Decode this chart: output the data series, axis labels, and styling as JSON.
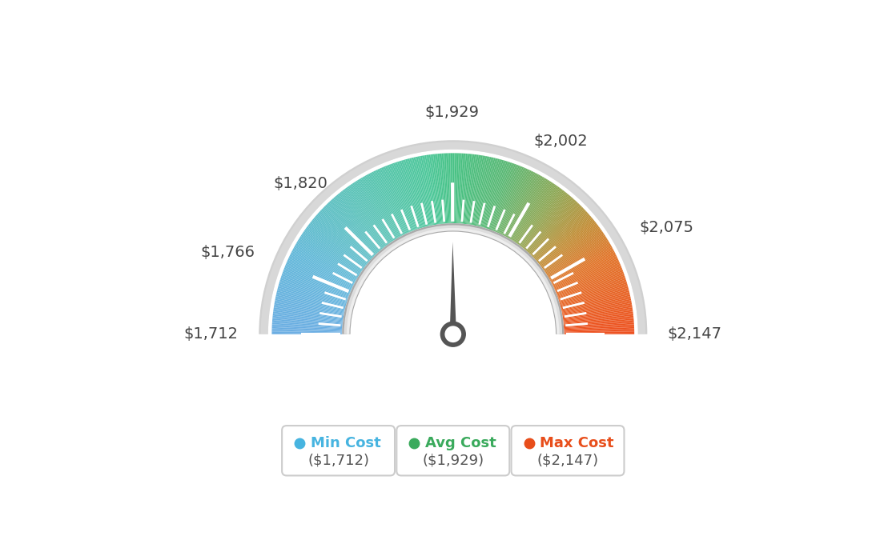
{
  "min_val": 1712,
  "max_val": 2147,
  "avg_val": 1929,
  "needle_value": 1929,
  "tick_labels": [
    "$1,712",
    "$1,766",
    "$1,820",
    "$1,929",
    "$2,002",
    "$2,075",
    "$2,147"
  ],
  "tick_values": [
    1712,
    1766,
    1820,
    1929,
    2002,
    2075,
    2147
  ],
  "color_stops": [
    [
      0.0,
      [
        0.42,
        0.68,
        0.89
      ]
    ],
    [
      0.15,
      [
        0.38,
        0.72,
        0.85
      ]
    ],
    [
      0.3,
      [
        0.35,
        0.76,
        0.72
      ]
    ],
    [
      0.45,
      [
        0.3,
        0.78,
        0.6
      ]
    ],
    [
      0.5,
      [
        0.28,
        0.76,
        0.52
      ]
    ],
    [
      0.6,
      [
        0.35,
        0.72,
        0.45
      ]
    ],
    [
      0.7,
      [
        0.55,
        0.65,
        0.32
      ]
    ],
    [
      0.78,
      [
        0.75,
        0.55,
        0.2
      ]
    ],
    [
      0.85,
      [
        0.88,
        0.45,
        0.15
      ]
    ],
    [
      1.0,
      [
        0.93,
        0.31,
        0.12
      ]
    ]
  ],
  "legend": [
    {
      "label": "Min Cost",
      "sublabel": "($1,712)",
      "color": "#47b4e0"
    },
    {
      "label": "Avg Cost",
      "sublabel": "($1,929)",
      "color": "#3aaa5c"
    },
    {
      "label": "Max Cost",
      "sublabel": "($2,147)",
      "color": "#e84e1b"
    }
  ],
  "bg_color": "#ffffff",
  "outer_ring_color": "#c8c8c8",
  "inner_ring_color": "#c0c0c0",
  "needle_color": "#555555",
  "needle_circle_color": "#555555",
  "needle_circle_inner": "#ffffff"
}
